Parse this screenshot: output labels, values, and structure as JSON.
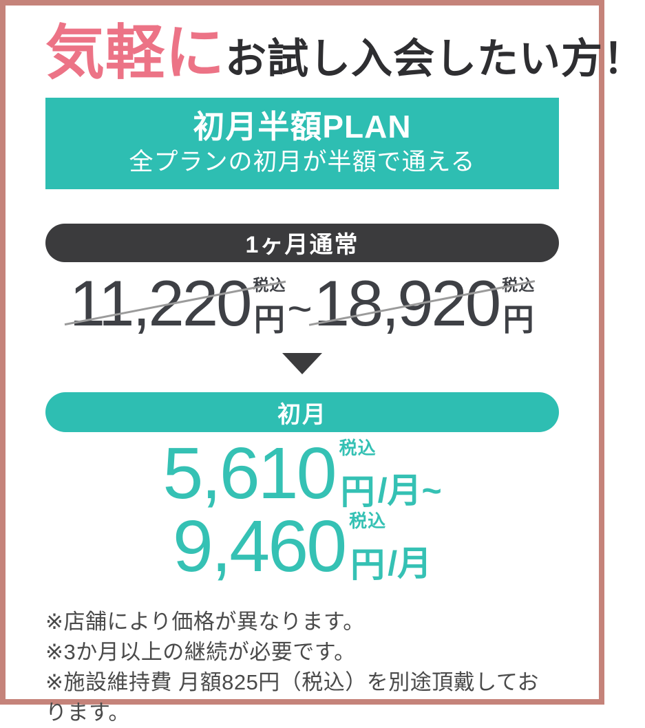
{
  "colors": {
    "border_salmon": "#c5837a",
    "accent_pink": "#ec7386",
    "accent_teal": "#2ebeb2",
    "teal_price": "#35c1b4",
    "dark_charcoal": "#3b3b3d",
    "price_dark": "#3e4045",
    "strike_gray": "#9b9b9b",
    "note_gray": "#4a4a4a"
  },
  "header": {
    "highlight": "気軽に",
    "rest": "お試し入会したい方！"
  },
  "plan_banner": {
    "title": "初月半額PLAN",
    "subtitle": "全プランの初月が半額で通える"
  },
  "regular_price": {
    "label": "1ヶ月通常",
    "price_low": "11,220",
    "price_high": "18,920",
    "tax_note": "税込",
    "yen": "円",
    "tilde": "~"
  },
  "first_month": {
    "label": "初月",
    "line1": {
      "price": "5,610",
      "tax_note": "税込",
      "yen": "円",
      "per": "/月~"
    },
    "line2": {
      "price": "9,460",
      "tax_note": "税込",
      "yen": "円",
      "per": "/月"
    }
  },
  "notes": [
    "※店舗により価格が異なります。",
    "※3か月以上の継続が必要です。",
    "※施設維持費 月額825円（税込）を別途頂戴しております。"
  ]
}
